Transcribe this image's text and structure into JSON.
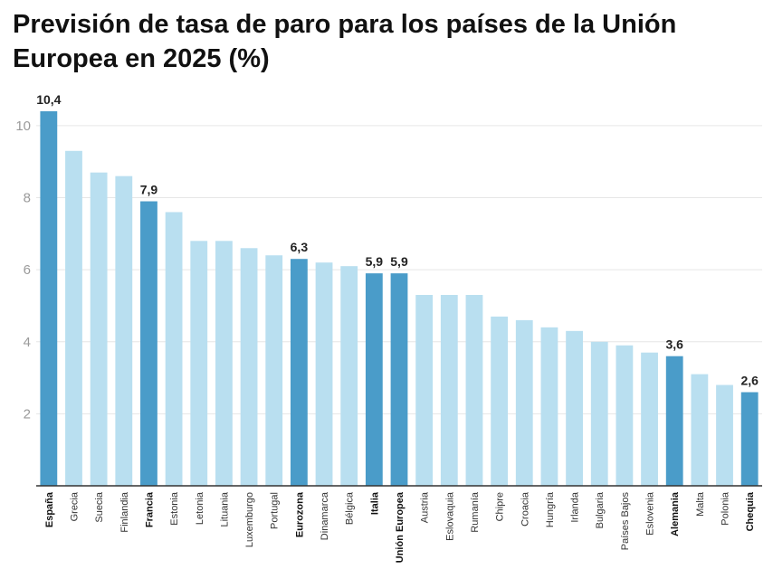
{
  "chart_data": {
    "type": "bar",
    "title": "Previsión de tasa de paro para los países de la Unión Europea en 2025 (%)",
    "xlabel": "",
    "ylabel": "",
    "ylim": [
      0,
      10.4
    ],
    "yticks": [
      2,
      4,
      6,
      8,
      10
    ],
    "ytick_labels": [
      "2",
      "4",
      "6",
      "8",
      "10"
    ],
    "grid": true,
    "categories": [
      "España",
      "Grecia",
      "Suecia",
      "Finlandia",
      "Francia",
      "Estonia",
      "Letonia",
      "Lituania",
      "Luxemburgo",
      "Portugal",
      "Eurozona",
      "Dinamarca",
      "Bélgica",
      "Italia",
      "Unión Europea",
      "Austria",
      "Eslovaquia",
      "Rumanía",
      "Chipre",
      "Croacia",
      "Hungría",
      "Irlanda",
      "Bulgaria",
      "Países Bajos",
      "Eslovenia",
      "Alemania",
      "Malta",
      "Polonia",
      "Chequia"
    ],
    "values": [
      10.4,
      9.3,
      8.7,
      8.6,
      7.9,
      7.6,
      6.8,
      6.8,
      6.6,
      6.4,
      6.3,
      6.2,
      6.1,
      5.9,
      5.9,
      5.3,
      5.3,
      5.3,
      4.7,
      4.6,
      4.4,
      4.3,
      4.0,
      3.9,
      3.7,
      3.6,
      3.1,
      2.8,
      2.6
    ],
    "highlighted": [
      "España",
      "Francia",
      "Eurozona",
      "Italia",
      "Unión Europea",
      "Alemania",
      "Chequia"
    ],
    "data_labels": [
      {
        "category": "España",
        "text": "10,4"
      },
      {
        "category": "Francia",
        "text": "7,9"
      },
      {
        "category": "Eurozona",
        "text": "6,3"
      },
      {
        "category": "Italia",
        "text": "5,9"
      },
      {
        "category": "Unión Europea",
        "text": "5,9"
      },
      {
        "category": "Alemania",
        "text": "3,6"
      },
      {
        "category": "Chequia",
        "text": "2,6"
      }
    ],
    "colors": {
      "highlight": "#4a9cc9",
      "normal": "#b9dff0",
      "grid": "#e6e6e6",
      "axis": "#333333"
    }
  }
}
